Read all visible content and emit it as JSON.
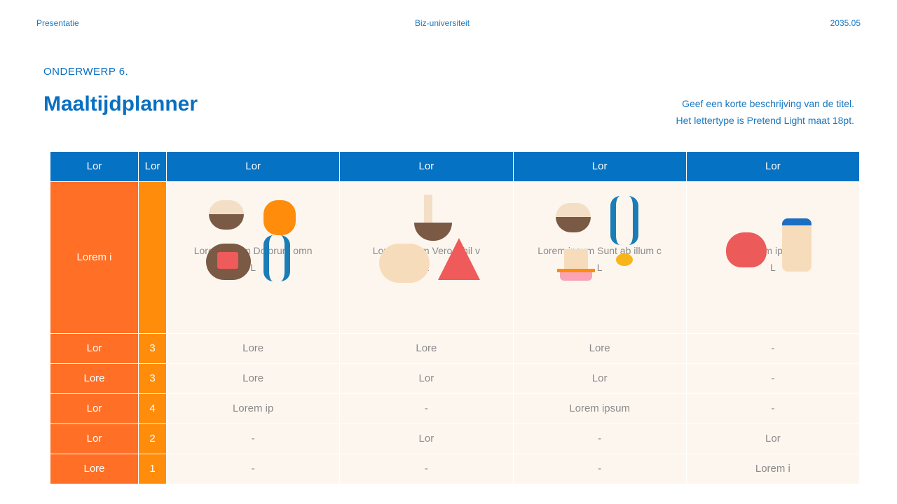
{
  "header": {
    "left": "Presentatie",
    "center": "Biz-universiteit",
    "right": "2035.05"
  },
  "kicker": "ONDERWERP 6.",
  "title": "Maaltijdplanner",
  "description": [
    "Geef een korte beschrijving van de titel.",
    "Het lettertype is Pretend Light maat 18pt."
  ],
  "table": {
    "headers": [
      "Lor",
      "Lor",
      "Lor",
      "Lor",
      "Lor",
      "Lor"
    ],
    "image_row": {
      "label": "Lorem i",
      "cells": [
        {
          "text": "Lorem ipsum Dolorum omn",
          "sub": "L",
          "icons": [
            "rice-bowl-icon",
            "chicken-leg-icon",
            "meat-bowl-icon",
            "seaweed-icon"
          ]
        },
        {
          "text": "Lorem ipsum Vero nihil v",
          "sub": "L",
          "icons": [
            "noodle-bowl-icon",
            "eggs-icon",
            "watermelon-icon"
          ]
        },
        {
          "text": "Lorem ipsum Sunt ab illum c",
          "sub": "L",
          "icons": [
            "rice-bowl-icon",
            "seaweed-icon",
            "pudding-icon",
            "egg-yolk-icon"
          ]
        },
        {
          "text": "Lorem ipsum",
          "sub": "L",
          "icons": [
            "apple-icon",
            "yogurt-bottle-icon"
          ]
        }
      ]
    },
    "rows": [
      {
        "label": "Lor",
        "count": "3",
        "cells": [
          "Lore",
          "Lore",
          "Lore",
          "-"
        ]
      },
      {
        "label": "Lore",
        "count": "3",
        "cells": [
          "Lore",
          "Lor",
          "Lor",
          "-"
        ]
      },
      {
        "label": "Lor",
        "count": "4",
        "cells": [
          "Lorem ip",
          "-",
          "Lorem ipsum",
          "-"
        ]
      },
      {
        "label": "Lor",
        "count": "2",
        "cells": [
          "-",
          "Lor",
          "-",
          "Lor"
        ]
      },
      {
        "label": "Lore",
        "count": "1",
        "cells": [
          "-",
          "-",
          "-",
          "Lorem i"
        ]
      }
    ]
  },
  "colors": {
    "header": "#0672c4",
    "label_col": "#ff6f26",
    "count_col": "#ff8c0a",
    "cell_bg": "#fdf6ef"
  }
}
